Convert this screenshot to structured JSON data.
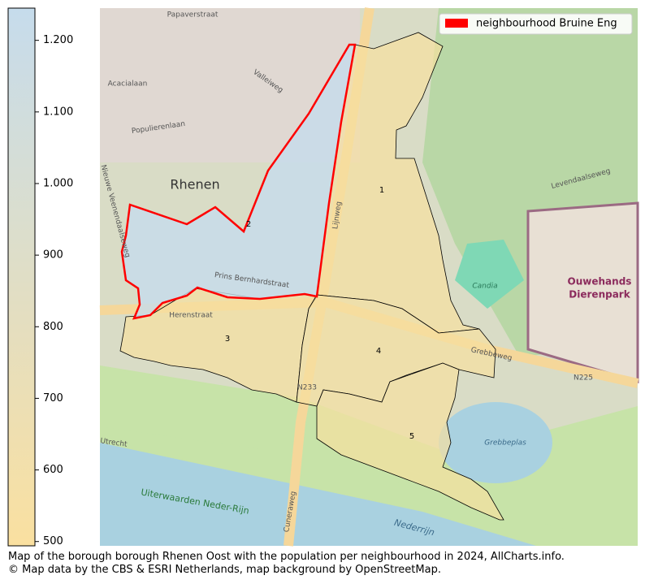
{
  "colorbar": {
    "lim": [
      494,
      1245
    ],
    "color_top": "#c6dcec",
    "color_bottom": "#fae0a0",
    "ticks": [
      {
        "value": 500,
        "label": "500"
      },
      {
        "value": 600,
        "label": "600"
      },
      {
        "value": 700,
        "label": "700"
      },
      {
        "value": 800,
        "label": "800"
      },
      {
        "value": 900,
        "label": "900"
      },
      {
        "value": 1000,
        "label": "1.000"
      },
      {
        "value": 1100,
        "label": "1.100"
      },
      {
        "value": 1200,
        "label": "1.200"
      }
    ]
  },
  "legend": {
    "label": "neighbourhood Bruine Eng",
    "color": "#ff0000"
  },
  "regions": [
    {
      "label": "1"
    },
    {
      "label": "2"
    },
    {
      "label": "3"
    },
    {
      "label": "4"
    },
    {
      "label": "5"
    }
  ],
  "map_labels": [
    "Rhenen",
    "Ouwehands",
    "Dierenpark",
    "Candia",
    "Grebbeplas",
    "Uiterwaarden Neder-Rijn",
    "Nederrijn",
    "N225",
    "N233",
    "Lijnweg",
    "Herenstraat",
    "Grebbeweg",
    "Cuneraweg",
    "Utrecht",
    "Levendaalseweg",
    "Prins Bernhardstraat",
    "Valleiweg",
    "Papaverstraat",
    "Acacialaan",
    "Populierenlaan",
    "Nieuwe Veenendaalseweg"
  ],
  "caption": [
    "Map of the borough borough Rhenen Oost with the population per neighbourhood in 2024, AllCharts.info.",
    "© Map data by the CBS & ESRI Netherlands, map background by OpenStreetMap."
  ]
}
